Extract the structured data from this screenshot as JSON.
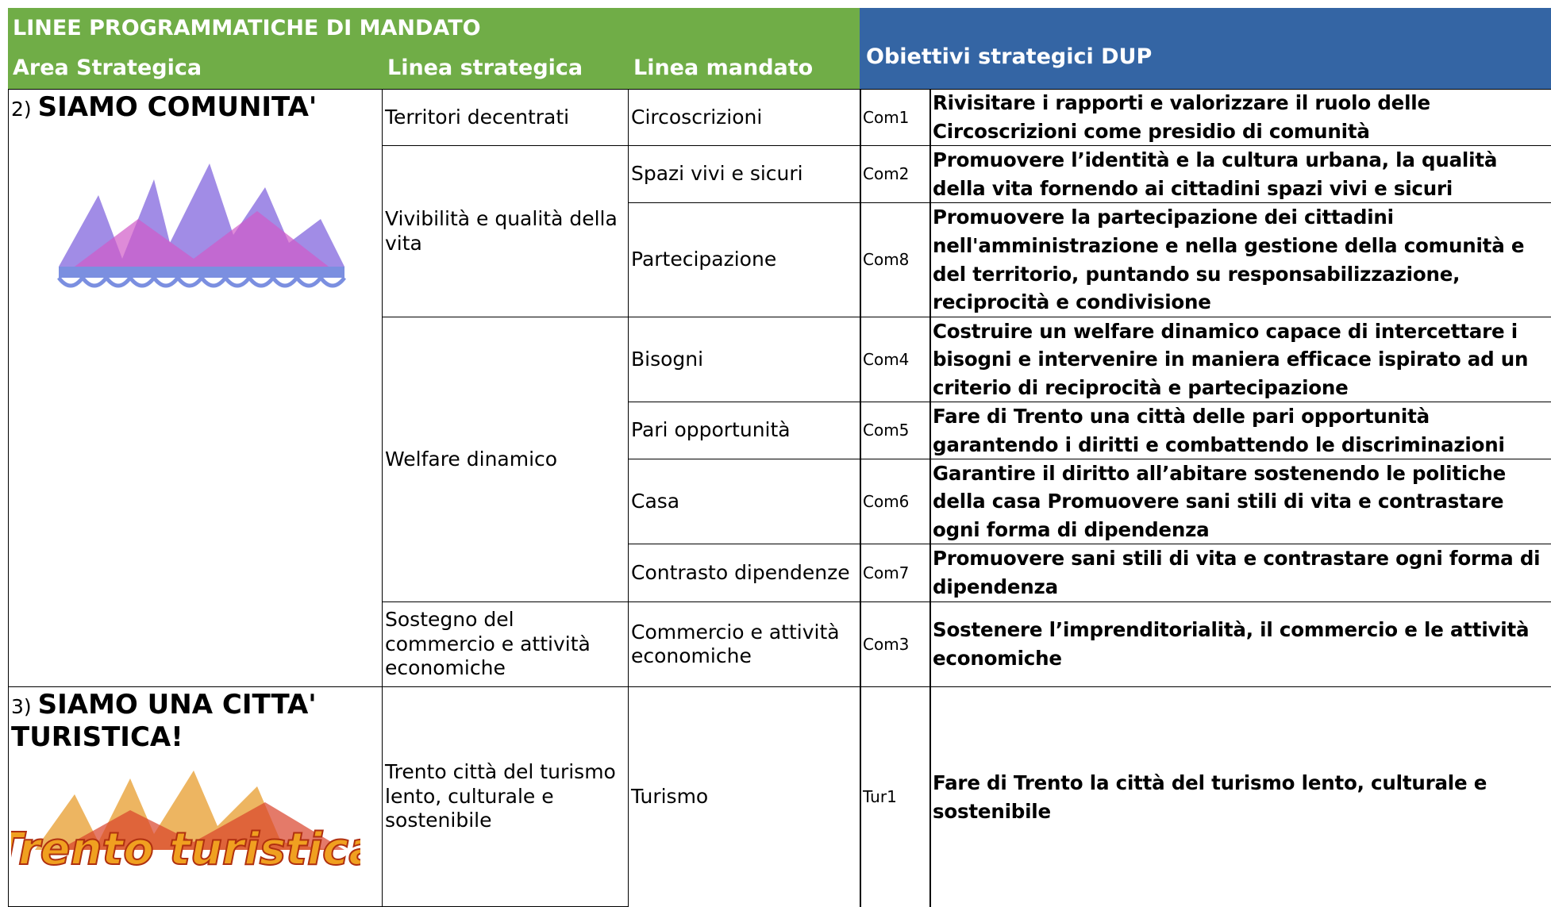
{
  "header": {
    "title": "LINEE PROGRAMMATICHE DI MANDATO",
    "area_strategica": "Area Strategica",
    "linea_strategica": "Linea strategica",
    "linea_mandato": "Linea mandato",
    "obiettivi": "Obiettivi strategici DUP"
  },
  "areas": [
    {
      "number": "2)",
      "name": "SIAMO COMUNITA'"
    },
    {
      "number": "3)",
      "name": "SIAMO UNA CITTA' TURISTICA!",
      "logo_text": "Trento turistica"
    }
  ],
  "linee_strategiche": [
    "Territori decentrati",
    "Vivibilità e qualità della vita",
    "Welfare dinamico",
    "Sostegno del commercio e attività economiche",
    "Trento città del turismo lento, culturale e sostenibile"
  ],
  "rows": [
    {
      "linea_mandato": "Circoscrizioni",
      "code": "Com1",
      "objective": "Rivisitare i rapporti e valorizzare il ruolo delle Circoscrizioni come presidio di comunità"
    },
    {
      "linea_mandato": "Spazi vivi e sicuri",
      "code": "Com2",
      "objective": "Promuovere l’identità e la cultura urbana, la qualità della vita fornendo ai cittadini spazi vivi e sicuri"
    },
    {
      "linea_mandato": "Partecipazione",
      "code": "Com8",
      "objective": "Promuovere la partecipazione dei cittadini nell'amministrazione e nella gestione della comunità e del territorio, puntando su responsabilizzazione, reciprocità e condivisione"
    },
    {
      "linea_mandato": "Bisogni",
      "code": "Com4",
      "objective": "Costruire un welfare dinamico capace di intercettare i bisogni e intervenire in maniera efficace ispirato ad un criterio di reciprocità e partecipazione"
    },
    {
      "linea_mandato": "Pari opportunità",
      "code": "Com5",
      "objective": "Fare di Trento una città delle pari opportunità garantendo i diritti e combattendo le discriminazioni"
    },
    {
      "linea_mandato": "Casa",
      "code": "Com6",
      "objective": "Garantire il diritto all’abitare sostenendo le politiche della casa Promuovere sani stili di vita e contrastare ogni forma di dipendenza"
    },
    {
      "linea_mandato": "Contrasto dipendenze",
      "code": "Com7",
      "objective": "Promuovere sani stili di vita e contrastare ogni forma di dipendenza"
    },
    {
      "linea_mandato": "Commercio e attività economiche",
      "code": "Com3",
      "objective": "Sostenere l’imprenditorialità, il  commercio e le attività economiche"
    },
    {
      "linea_mandato": "Turismo",
      "code": "Tur1",
      "objective": "Fare di Trento la città del  turismo lento, culturale e sostenibile"
    }
  ]
}
